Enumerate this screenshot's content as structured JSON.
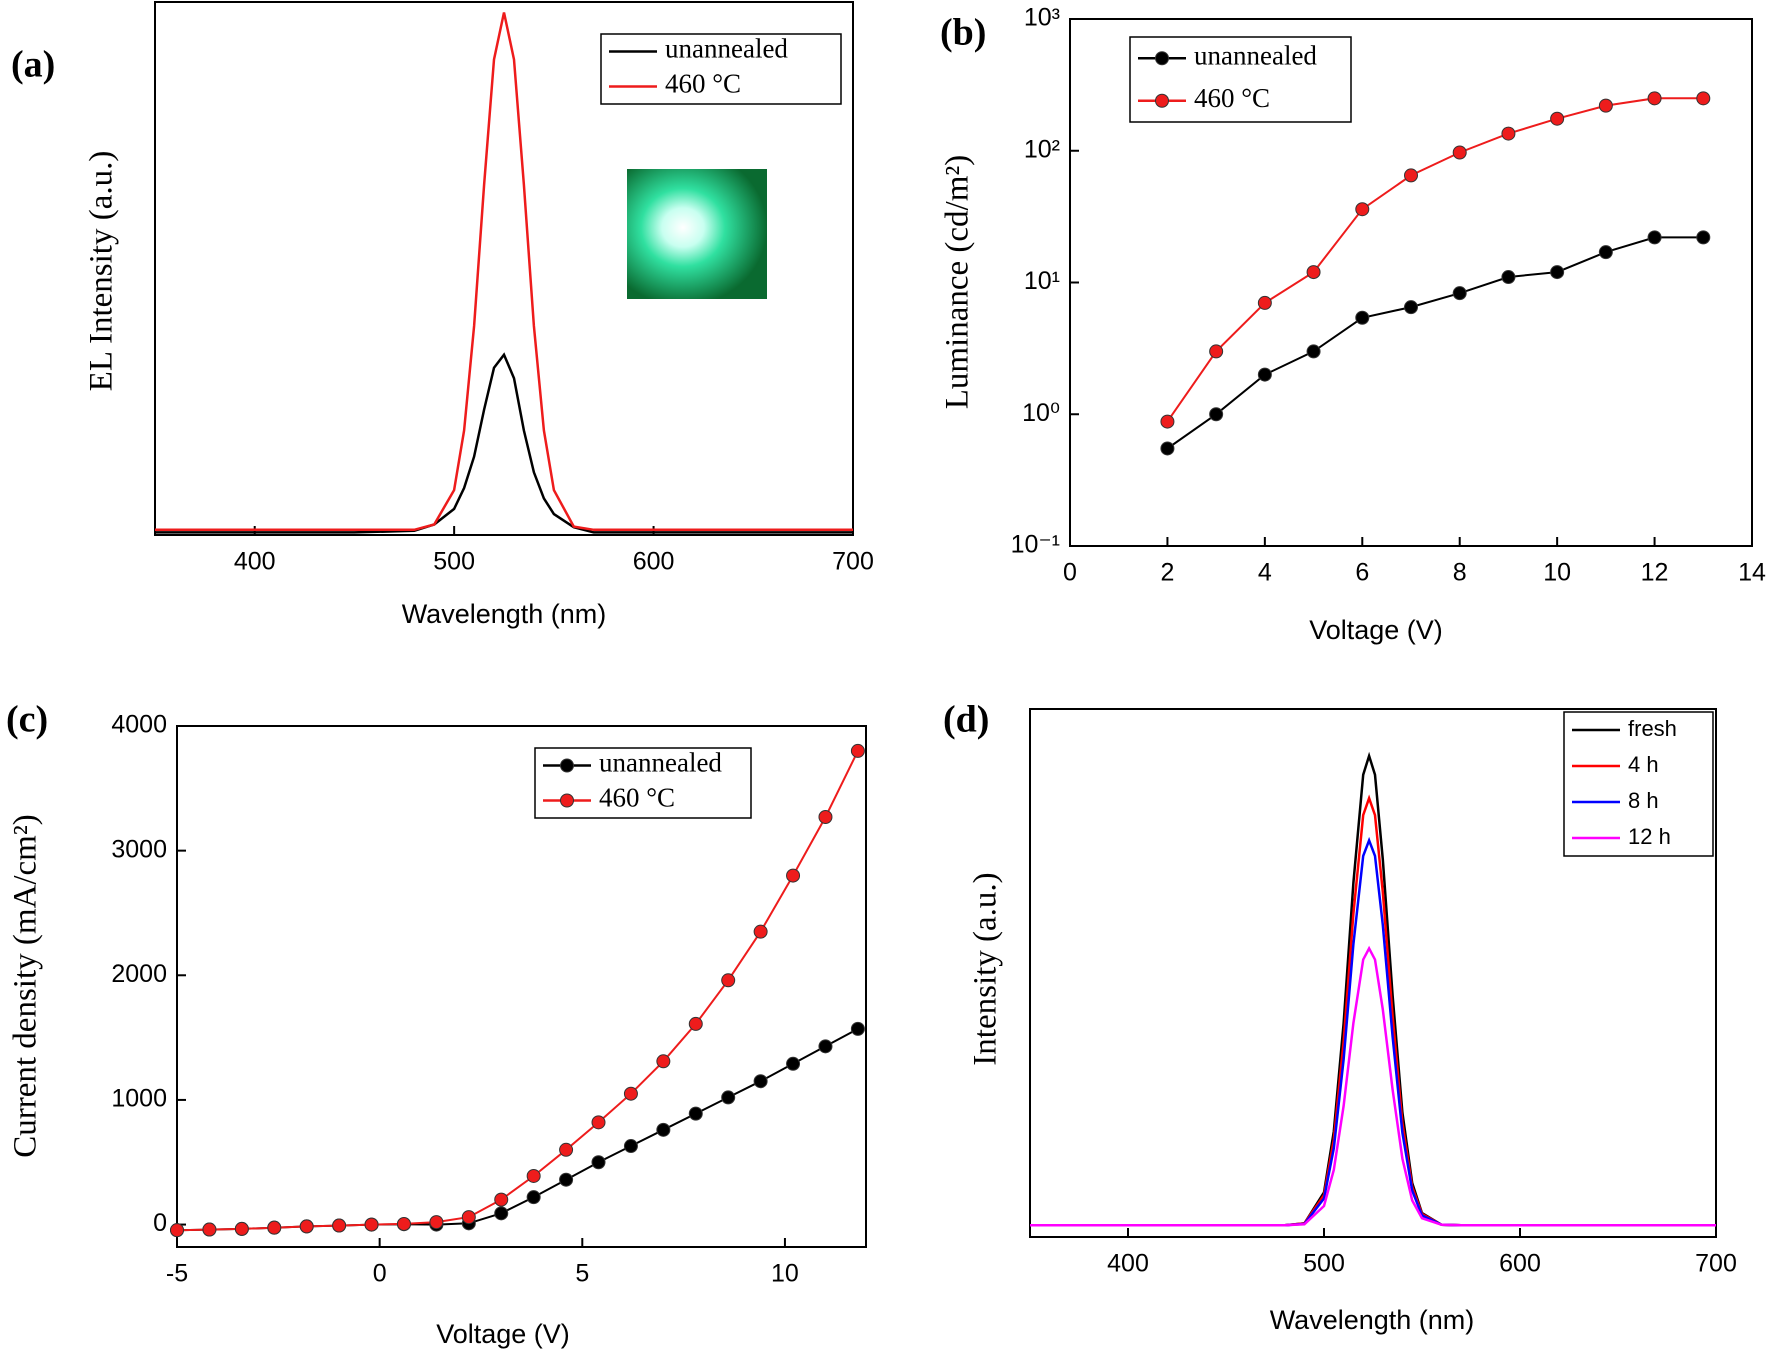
{
  "chart_data": [
    {
      "type": "line",
      "label": "(a)",
      "x_label": "Wavelength (nm)",
      "y_label": "EL Intensity (a.u.)",
      "x": [
        350,
        400,
        450,
        480,
        490,
        500,
        505,
        510,
        515,
        520,
        525,
        530,
        535,
        540,
        545,
        550,
        560,
        570,
        600,
        700
      ],
      "xlim": [
        350,
        700
      ],
      "xticks": [
        400,
        500,
        600,
        700
      ],
      "ylim": [
        0,
        1.02
      ],
      "markers": false,
      "legend_style": "serif",
      "series": [
        {
          "name": "unannealed",
          "color": "#000000",
          "values": [
            0.005,
            0.005,
            0.005,
            0.008,
            0.02,
            0.05,
            0.09,
            0.15,
            0.24,
            0.32,
            0.345,
            0.3,
            0.2,
            0.12,
            0.07,
            0.04,
            0.015,
            0.005,
            0.005,
            0.005
          ]
        },
        {
          "name": "460 °C",
          "color": "#ee1c1c",
          "values": [
            0.01,
            0.01,
            0.01,
            0.01,
            0.02,
            0.086,
            0.2,
            0.4,
            0.67,
            0.91,
            1,
            0.91,
            0.67,
            0.4,
            0.2,
            0.086,
            0.016,
            0.01,
            0.01,
            0.01
          ]
        }
      ]
    },
    {
      "type": "line",
      "label": "(b)",
      "x_label": "Voltage (V)",
      "y_label": "Luminance (cd/m²)",
      "x": [
        2,
        3,
        4,
        5,
        6,
        7,
        8,
        9,
        10,
        11,
        12,
        13
      ],
      "xlim": [
        0,
        14
      ],
      "xticks": [
        0,
        2,
        4,
        6,
        8,
        10,
        12,
        14
      ],
      "ylim": [
        0.1,
        1000
      ],
      "yscale": "log",
      "yticks": [
        {
          "value": 0.1,
          "label": "10⁻¹"
        },
        {
          "value": 1,
          "label": "10⁰"
        },
        {
          "value": 10,
          "label": "10¹"
        },
        {
          "value": 100,
          "label": "10²"
        },
        {
          "value": 1000,
          "label": "10³"
        }
      ],
      "markers": true,
      "legend_style": "serif",
      "series": [
        {
          "name": "unannealed",
          "color": "#000000",
          "values": [
            0.55,
            1.0,
            2.0,
            3.0,
            5.4,
            6.5,
            8.3,
            11,
            12,
            17,
            22,
            22
          ]
        },
        {
          "name": "460 °C",
          "color": "#ee1c1c",
          "values": [
            0.88,
            3.0,
            7,
            12,
            36,
            65,
            97,
            135,
            175,
            220,
            250,
            250
          ]
        }
      ]
    },
    {
      "type": "line",
      "label": "(c)",
      "x_label": "Voltage (V)",
      "y_label": "Current density (mA/cm²)",
      "x": [
        -5,
        -4.2,
        -3.4,
        -2.6,
        -1.8,
        -1,
        -0.2,
        0.6,
        1.4,
        2.2,
        3,
        3.8,
        4.6,
        5.4,
        6.2,
        7,
        7.8,
        8.6,
        9.4,
        10.2,
        11,
        11.8
      ],
      "xlim": [
        -5,
        12
      ],
      "xticks": [
        -5,
        0,
        5,
        10
      ],
      "ylim": [
        -180,
        4000
      ],
      "yticks": [
        0,
        1000,
        2000,
        3000,
        4000
      ],
      "markers": true,
      "legend_style": "serif",
      "series": [
        {
          "name": "unannealed",
          "color": "#000000",
          "values": [
            -45,
            -40,
            -35,
            -25,
            -15,
            -8,
            0,
            3,
            0,
            10,
            90,
            220,
            360,
            500,
            630,
            760,
            890,
            1020,
            1150,
            1290,
            1430,
            1570
          ]
        },
        {
          "name": "460 °C",
          "color": "#ee1c1c",
          "values": [
            -45,
            -40,
            -35,
            -25,
            -15,
            -8,
            0,
            5,
            20,
            60,
            200,
            390,
            600,
            820,
            1050,
            1310,
            1610,
            1960,
            2350,
            2800,
            3270,
            3800
          ]
        }
      ]
    },
    {
      "type": "line",
      "label": "(d)",
      "x_label": "Wavelength (nm)",
      "y_label": "Intensity (a.u.)",
      "x": [
        350,
        450,
        480,
        490,
        500,
        505,
        510,
        515,
        520,
        523,
        526,
        530,
        535,
        540,
        545,
        550,
        560,
        570,
        600,
        700
      ],
      "xlim": [
        350,
        700
      ],
      "xticks": [
        400,
        500,
        600,
        700
      ],
      "ylim": [
        -0.025,
        1.1
      ],
      "markers": false,
      "legend_style": "sans",
      "series": [
        {
          "name": "fresh",
          "color": "#000000",
          "values": [
            0,
            0,
            0,
            0.004,
            0.07,
            0.2,
            0.43,
            0.73,
            0.96,
            1,
            0.96,
            0.78,
            0.49,
            0.24,
            0.09,
            0.026,
            0.001,
            0,
            0,
            0
          ]
        },
        {
          "name": "4 h",
          "color": "#ff0000",
          "values": [
            0,
            0,
            0,
            0.004,
            0.064,
            0.182,
            0.391,
            0.664,
            0.874,
            0.91,
            0.874,
            0.71,
            0.446,
            0.218,
            0.082,
            0.024,
            0.001,
            0,
            0,
            0
          ]
        },
        {
          "name": "8 h",
          "color": "#0000ff",
          "values": [
            0,
            0,
            0,
            0.003,
            0.057,
            0.164,
            0.353,
            0.599,
            0.787,
            0.82,
            0.787,
            0.64,
            0.402,
            0.197,
            0.074,
            0.021,
            0.001,
            0,
            0,
            0
          ]
        },
        {
          "name": "12 h",
          "color": "#ff00ff",
          "values": [
            0,
            0,
            0,
            0.002,
            0.041,
            0.118,
            0.254,
            0.431,
            0.566,
            0.59,
            0.566,
            0.46,
            0.289,
            0.142,
            0.053,
            0.015,
            0.001,
            0,
            0,
            0
          ]
        }
      ]
    }
  ]
}
